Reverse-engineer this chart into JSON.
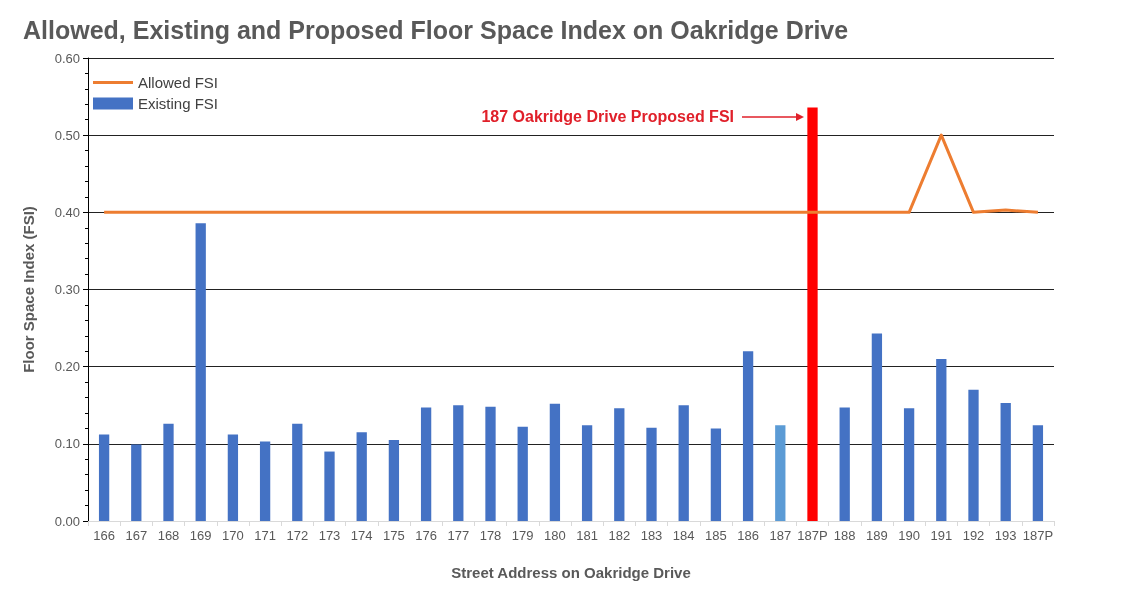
{
  "chart_data": {
    "type": "bar",
    "title": "Allowed, Existing and Proposed Floor Space Index on Oakridge Drive",
    "xlabel": "Street Address on Oakridge Drive",
    "ylabel": "Floor Space Index (FSI)",
    "categories": [
      "166",
      "167",
      "168",
      "169",
      "170",
      "171",
      "172",
      "173",
      "174",
      "175",
      "176",
      "177",
      "178",
      "179",
      "180",
      "181",
      "182",
      "183",
      "184",
      "185",
      "186",
      "187",
      "187P",
      "188",
      "189",
      "190",
      "191",
      "192",
      "193",
      "187P"
    ],
    "series": [
      {
        "name": "Allowed FSI",
        "type": "line",
        "color": "#ed7d31",
        "values": [
          0.4,
          0.4,
          0.4,
          0.4,
          0.4,
          0.4,
          0.4,
          0.4,
          0.4,
          0.4,
          0.4,
          0.4,
          0.4,
          0.4,
          0.4,
          0.4,
          0.4,
          0.4,
          0.4,
          0.4,
          0.4,
          0.4,
          0.4,
          0.4,
          0.4,
          0.4,
          0.5,
          0.4,
          0.403,
          0.4
        ]
      },
      {
        "name": "Existing FSI",
        "color": "#4472c4",
        "colors": [
          "#4472c4",
          "#4472c4",
          "#4472c4",
          "#4472c4",
          "#4472c4",
          "#4472c4",
          "#4472c4",
          "#4472c4",
          "#4472c4",
          "#4472c4",
          "#4472c4",
          "#4472c4",
          "#4472c4",
          "#4472c4",
          "#4472c4",
          "#4472c4",
          "#4472c4",
          "#4472c4",
          "#4472c4",
          "#4472c4",
          "#4472c4",
          "#5b9bd5",
          "#ff0000",
          "#4472c4",
          "#4472c4",
          "#4472c4",
          "#4472c4",
          "#4472c4",
          "#4472c4",
          "#4472c4"
        ],
        "values": [
          0.112,
          0.099,
          0.126,
          0.386,
          0.112,
          0.103,
          0.126,
          0.09,
          0.115,
          0.105,
          0.147,
          0.15,
          0.148,
          0.122,
          0.152,
          0.124,
          0.146,
          0.121,
          0.15,
          0.12,
          0.22,
          0.124,
          0.536,
          0.147,
          0.243,
          0.146,
          0.21,
          0.17,
          0.153,
          0.124
        ]
      }
    ],
    "annotations": [
      "187 Oakridge Drive Proposed FSI"
    ],
    "ylim": [
      0,
      0.6
    ],
    "yticks": [
      {
        "value": 0,
        "label": "0.00"
      },
      {
        "value": 0.1,
        "label": "0.10"
      },
      {
        "value": 0.2,
        "label": "0.20"
      },
      {
        "value": 0.3,
        "label": "0.30"
      },
      {
        "value": 0.4,
        "label": "0.40"
      },
      {
        "value": 0.5,
        "label": "0.50"
      },
      {
        "value": 0.6,
        "label": "0.60"
      }
    ],
    "grid": "y",
    "legend": "top left",
    "marker": "none",
    "line_style": "solid"
  }
}
